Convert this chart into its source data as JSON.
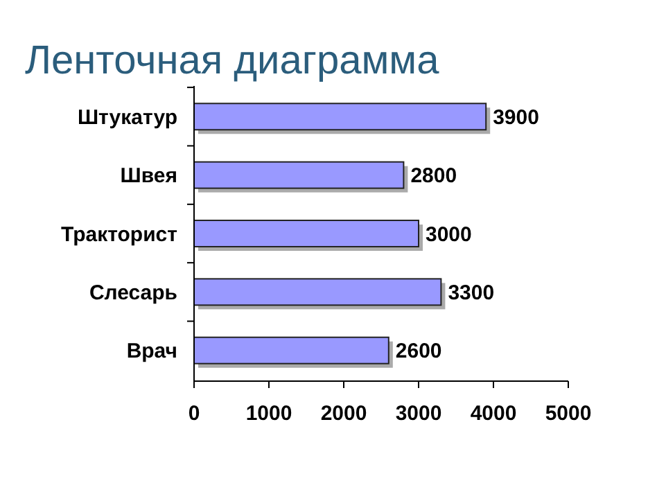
{
  "chart_data": {
    "type": "bar",
    "orientation": "horizontal",
    "title": "Ленточная диаграмма",
    "categories": [
      "Штукатур",
      "Швея",
      "Тракторист",
      "Слесарь",
      "Врач"
    ],
    "values": [
      3900,
      2800,
      3000,
      3300,
      2600
    ],
    "color": "#9999ff",
    "xlim": [
      0,
      5000
    ],
    "xticks": [
      0,
      1000,
      2000,
      3000,
      4000,
      5000
    ],
    "data_labels": true
  }
}
